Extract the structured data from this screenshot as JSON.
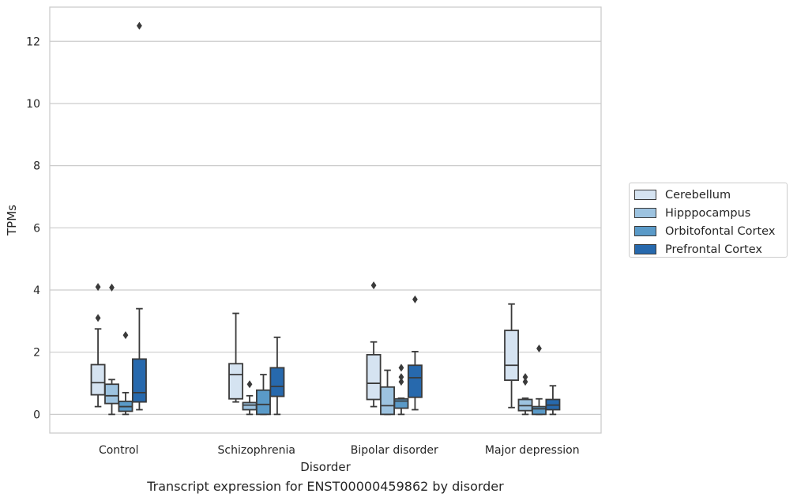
{
  "caption": "Transcript expression for ENST00000459862 by disorder",
  "chart_data": {
    "type": "box",
    "xlabel": "Disorder",
    "ylabel": "TPMs",
    "ylim": [
      -0.6,
      13.1
    ],
    "yticks": [
      0,
      2,
      4,
      6,
      8,
      10,
      12
    ],
    "grid": "horizontal",
    "legend_position": "right",
    "categories": [
      "Control",
      "Schizophrenia",
      "Bipolar disorder",
      "Major depression"
    ],
    "series": [
      {
        "name": "Cerebellum",
        "color": "#d5e3f1",
        "boxes": [
          {
            "whislo": 0.25,
            "q1": 0.63,
            "med": 1.02,
            "q3": 1.6,
            "whishi": 2.75,
            "fliers": [
              3.1,
              4.1
            ]
          },
          {
            "whislo": 0.4,
            "q1": 0.5,
            "med": 1.28,
            "q3": 1.63,
            "whishi": 3.25,
            "fliers": []
          },
          {
            "whislo": 0.25,
            "q1": 0.48,
            "med": 1.0,
            "q3": 1.92,
            "whishi": 2.33,
            "fliers": [
              4.15
            ]
          },
          {
            "whislo": 0.22,
            "q1": 1.1,
            "med": 1.58,
            "q3": 2.7,
            "whishi": 3.55,
            "fliers": []
          }
        ]
      },
      {
        "name": "Hipppocampus",
        "color": "#9dc3e0",
        "boxes": [
          {
            "whislo": 0.0,
            "q1": 0.35,
            "med": 0.6,
            "q3": 0.97,
            "whishi": 1.12,
            "fliers": [
              4.08
            ]
          },
          {
            "whislo": 0.0,
            "q1": 0.15,
            "med": 0.3,
            "q3": 0.38,
            "whishi": 0.6,
            "fliers": [
              0.97
            ]
          },
          {
            "whislo": 0.0,
            "q1": 0.0,
            "med": 0.28,
            "q3": 0.88,
            "whishi": 1.42,
            "fliers": []
          },
          {
            "whislo": 0.0,
            "q1": 0.12,
            "med": 0.28,
            "q3": 0.48,
            "whishi": 0.52,
            "fliers": [
              1.05,
              1.2
            ]
          }
        ]
      },
      {
        "name": "Orbitofontal Cortex",
        "color": "#5a9ac8",
        "boxes": [
          {
            "whislo": 0.0,
            "q1": 0.1,
            "med": 0.25,
            "q3": 0.42,
            "whishi": 0.7,
            "fliers": [
              2.55
            ]
          },
          {
            "whislo": 0.0,
            "q1": 0.0,
            "med": 0.32,
            "q3": 0.78,
            "whishi": 1.28,
            "fliers": []
          },
          {
            "whislo": 0.0,
            "q1": 0.2,
            "med": 0.43,
            "q3": 0.5,
            "whishi": 0.52,
            "fliers": [
              1.05,
              1.2,
              1.5
            ]
          },
          {
            "whislo": 0.0,
            "q1": 0.0,
            "med": 0.18,
            "q3": 0.25,
            "whishi": 0.5,
            "fliers": [
              2.12
            ]
          }
        ]
      },
      {
        "name": "Prefrontal Cortex",
        "color": "#2769ad",
        "boxes": [
          {
            "whislo": 0.15,
            "q1": 0.4,
            "med": 0.7,
            "q3": 1.78,
            "whishi": 3.4,
            "fliers": [
              12.5
            ]
          },
          {
            "whislo": 0.0,
            "q1": 0.58,
            "med": 0.9,
            "q3": 1.5,
            "whishi": 2.48,
            "fliers": []
          },
          {
            "whislo": 0.15,
            "q1": 0.55,
            "med": 1.18,
            "q3": 1.58,
            "whishi": 2.02,
            "fliers": [
              3.7
            ]
          },
          {
            "whislo": 0.0,
            "q1": 0.15,
            "med": 0.3,
            "q3": 0.48,
            "whishi": 0.92,
            "fliers": []
          }
        ]
      }
    ]
  }
}
